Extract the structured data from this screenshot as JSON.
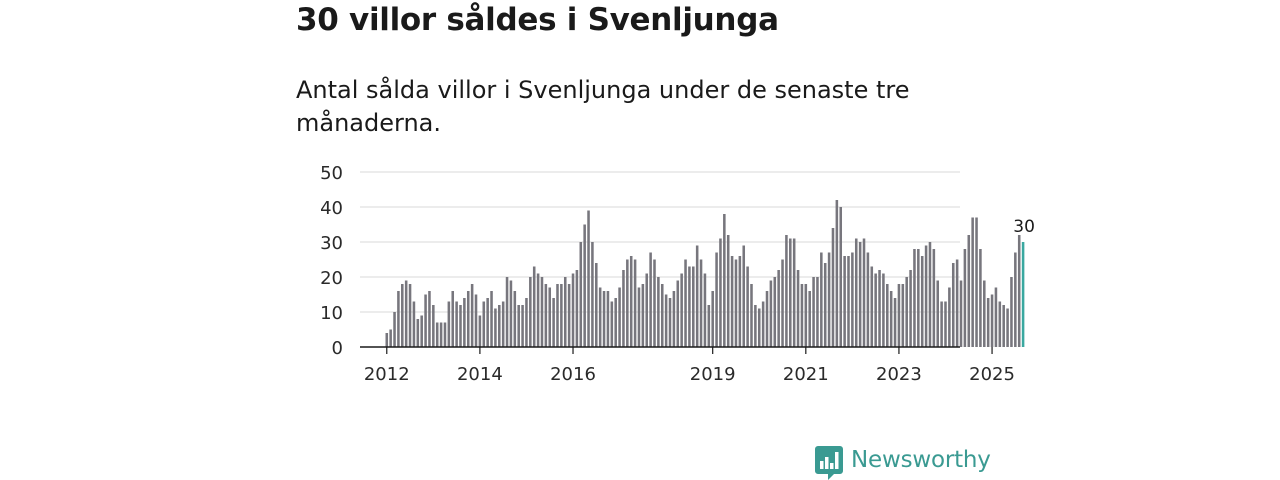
{
  "header": {
    "title": "30 villor såldes i Svenljunga",
    "subtitle": "Antal sålda villor i Svenljunga under de senaste tre månaderna."
  },
  "brand": {
    "name": "Newsworthy",
    "color": "#3a9a92",
    "icon": "newsworthy-logo-icon"
  },
  "chart_data": {
    "type": "bar",
    "title": "",
    "xlabel": "",
    "ylabel": "",
    "ylim": [
      0,
      50
    ],
    "yticks": [
      0,
      10,
      20,
      30,
      40,
      50
    ],
    "grid": true,
    "bar_color": "#77767d",
    "highlight_color": "#3aa8a0",
    "start": {
      "year": 2012,
      "month": 1
    },
    "xtick_labels": [
      {
        "label": "2012",
        "year": 2012
      },
      {
        "label": "2014",
        "year": 2014
      },
      {
        "label": "2016",
        "year": 2016
      },
      {
        "label": "2019",
        "year": 2019
      },
      {
        "label": "2021",
        "year": 2021
      },
      {
        "label": "2023",
        "year": 2023
      },
      {
        "label": "2025",
        "year": 2025
      }
    ],
    "annotation": {
      "label": "30",
      "target": "last"
    },
    "values": [
      4,
      5,
      10,
      16,
      18,
      19,
      18,
      13,
      8,
      9,
      15,
      16,
      12,
      7,
      7,
      7,
      13,
      16,
      13,
      12,
      14,
      16,
      18,
      15,
      9,
      13,
      14,
      16,
      11,
      12,
      13,
      20,
      19,
      16,
      12,
      12,
      14,
      20,
      23,
      21,
      20,
      18,
      17,
      14,
      18,
      18,
      20,
      18,
      21,
      22,
      30,
      35,
      39,
      30,
      24,
      17,
      16,
      16,
      13,
      14,
      17,
      22,
      25,
      26,
      25,
      17,
      18,
      21,
      27,
      25,
      20,
      18,
      15,
      14,
      16,
      19,
      21,
      25,
      23,
      23,
      29,
      25,
      21,
      12,
      16,
      27,
      31,
      38,
      32,
      26,
      25,
      26,
      29,
      23,
      18,
      12,
      11,
      13,
      16,
      19,
      20,
      22,
      25,
      32,
      31,
      31,
      22,
      18,
      18,
      16,
      20,
      20,
      27,
      24,
      27,
      34,
      42,
      40,
      26,
      26,
      27,
      31,
      30,
      31,
      27,
      23,
      21,
      22,
      21,
      18,
      16,
      14,
      18,
      18,
      20,
      22,
      28,
      28,
      26,
      29,
      30,
      28,
      19,
      13,
      13,
      17,
      24,
      25,
      19,
      28,
      32,
      37,
      37,
      28,
      19,
      14,
      15,
      17,
      13,
      12,
      11,
      20,
      27,
      32,
      30
    ]
  }
}
